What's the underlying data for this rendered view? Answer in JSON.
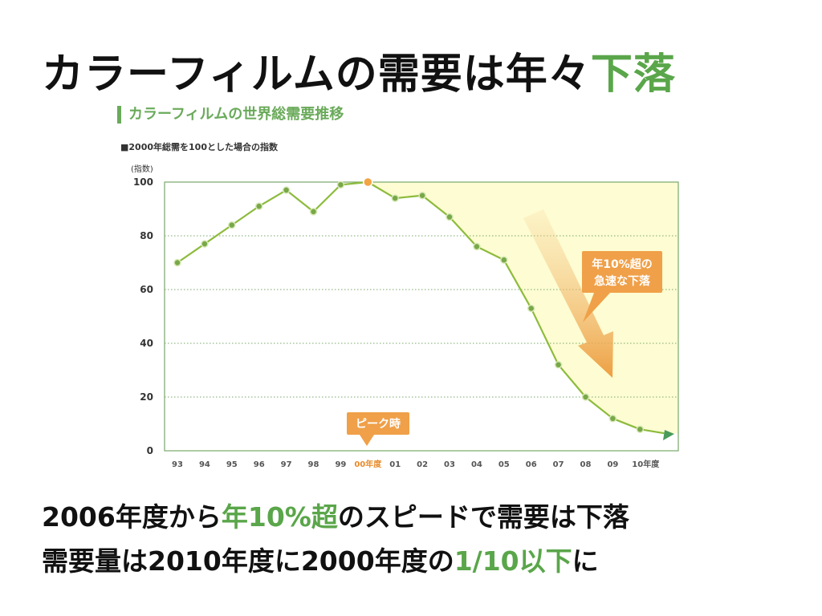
{
  "slide": {
    "title_prefix": "カラーフィルムの需要は年々",
    "title_accent": "下落",
    "chart_heading": "カラーフィルムの世界総需要推移",
    "chart_note": "■2000年総需を100とした場合の指数",
    "line1": {
      "a": "2006年度から",
      "accent": "年10%超",
      "b": "のスピードで需要は下落"
    },
    "line2": {
      "a": "需要量は2010年度に2000年度の",
      "accent": "1/10以下",
      "b": "に"
    }
  },
  "colors": {
    "line": "#8dbb3c",
    "marker": "#78a848",
    "peak": "#f2a444",
    "decline_fill": "#fdfcd2",
    "callout": "#f0a048",
    "accent_text": "#5aa64a",
    "grid": "#7aa86a"
  },
  "chart_data": {
    "type": "line",
    "title": "カラーフィルムの世界総需要推移",
    "subtitle": "■2000年総需を100とした場合の指数",
    "ylabel": "(指数)",
    "x": [
      "93",
      "94",
      "95",
      "96",
      "97",
      "98",
      "99",
      "00年度",
      "01",
      "02",
      "03",
      "04",
      "05",
      "06",
      "07",
      "08",
      "09",
      "10年度"
    ],
    "values": [
      70,
      77,
      84,
      91,
      97,
      89,
      99,
      100,
      94,
      95,
      87,
      76,
      71,
      53,
      32,
      20,
      12,
      8
    ],
    "ylim": [
      0,
      100
    ],
    "yticks": [
      0,
      20,
      40,
      60,
      80,
      100
    ],
    "grid": "horizontal dotted",
    "peak_index": 7,
    "annotations": [
      {
        "text": "ピーク時",
        "at": "00年度"
      },
      {
        "text_line1": "年10%超の",
        "text_line2": "急速な下落"
      }
    ]
  }
}
